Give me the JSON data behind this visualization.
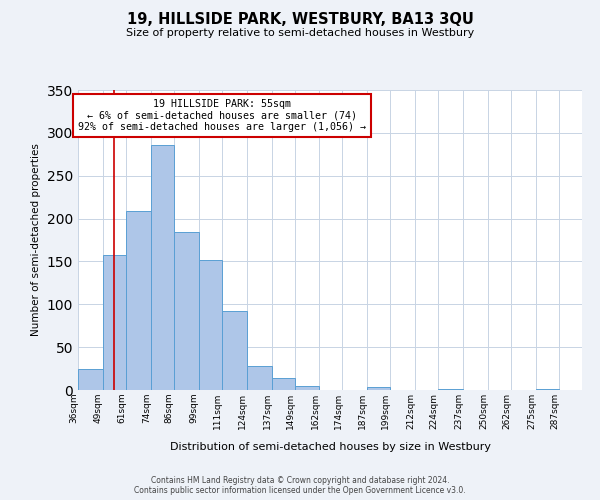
{
  "title": "19, HILLSIDE PARK, WESTBURY, BA13 3QU",
  "subtitle": "Size of property relative to semi-detached houses in Westbury",
  "xlabel": "Distribution of semi-detached houses by size in Westbury",
  "ylabel": "Number of semi-detached properties",
  "bin_labels": [
    "36sqm",
    "49sqm",
    "61sqm",
    "74sqm",
    "86sqm",
    "99sqm",
    "111sqm",
    "124sqm",
    "137sqm",
    "149sqm",
    "162sqm",
    "174sqm",
    "187sqm",
    "199sqm",
    "212sqm",
    "224sqm",
    "237sqm",
    "250sqm",
    "262sqm",
    "275sqm",
    "287sqm"
  ],
  "bin_edges": [
    36,
    49,
    61,
    74,
    86,
    99,
    111,
    124,
    137,
    149,
    162,
    174,
    187,
    199,
    212,
    224,
    237,
    250,
    262,
    275,
    287
  ],
  "bar_heights": [
    25,
    157,
    209,
    286,
    184,
    152,
    92,
    28,
    14,
    5,
    0,
    0,
    4,
    0,
    0,
    1,
    0,
    0,
    0,
    1
  ],
  "bar_color": "#aec6e8",
  "bar_edge_color": "#5a9fd4",
  "property_line_x": 55,
  "annotation_title": "19 HILLSIDE PARK: 55sqm",
  "annotation_line1": "← 6% of semi-detached houses are smaller (74)",
  "annotation_line2": "92% of semi-detached houses are larger (1,056) →",
  "annotation_box_color": "#ffffff",
  "annotation_box_edge_color": "#cc0000",
  "vline_color": "#cc0000",
  "ylim": [
    0,
    350
  ],
  "yticks": [
    0,
    50,
    100,
    150,
    200,
    250,
    300,
    350
  ],
  "footer_line1": "Contains HM Land Registry data © Crown copyright and database right 2024.",
  "footer_line2": "Contains public sector information licensed under the Open Government Licence v3.0.",
  "bg_color": "#eef2f8",
  "plot_bg_color": "#ffffff",
  "grid_color": "#c8d4e4"
}
